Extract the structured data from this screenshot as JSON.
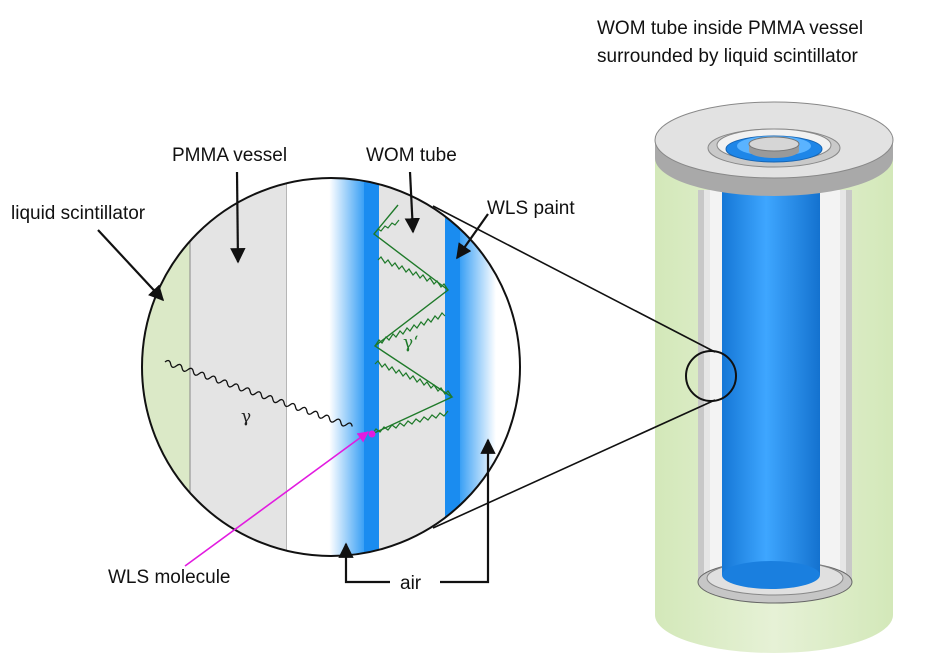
{
  "labels": {
    "title_line1": "WOM tube inside  PMMA vessel",
    "title_line2": "surrounded by liquid scintillator",
    "pmma_vessel": "PMMA vessel",
    "wom_tube": "WOM tube",
    "liquid_scintillator": "liquid scintillator",
    "wls_paint": "WLS paint",
    "wls_molecule": "WLS molecule",
    "air": "air",
    "gamma": "γ",
    "gamma_prime": "γ‘"
  },
  "colors": {
    "scintillator": "#dbe9c7",
    "pmma": "#e4e4e4",
    "wom_blue": "#1a8cf0",
    "photon_wave": "#1f7a2a",
    "primary_wave": "#111111",
    "molecule_arrow": "#e21be0",
    "outline": "#222222"
  }
}
